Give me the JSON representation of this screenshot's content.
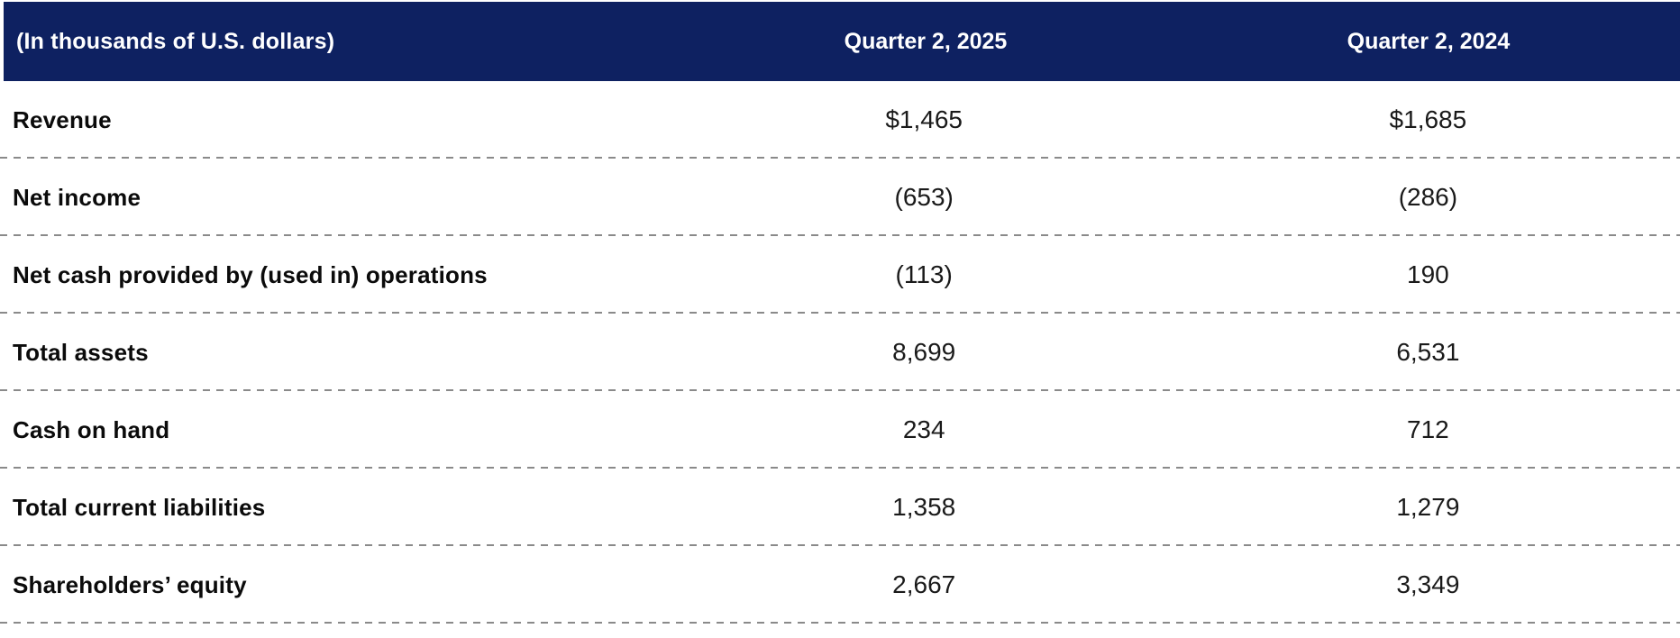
{
  "table": {
    "unit_label": "(In thousands of U.S. dollars)",
    "columns": [
      "Quarter 2, 2025",
      "Quarter 2, 2024"
    ],
    "rows": [
      {
        "label": "Revenue",
        "q2_2025": "$1,465",
        "q2_2024": "$1,685"
      },
      {
        "label": "Net income",
        "q2_2025": "(653)",
        "q2_2024": "(286)"
      },
      {
        "label": "Net cash provided by (used in) operations",
        "q2_2025": "(113)",
        "q2_2024": "190"
      },
      {
        "label": "Total assets",
        "q2_2025": "8,699",
        "q2_2024": "6,531"
      },
      {
        "label": "Cash on hand",
        "q2_2025": "234",
        "q2_2024": "712"
      },
      {
        "label": "Total current liabilities",
        "q2_2025": "1,358",
        "q2_2024": "1,279"
      },
      {
        "label": "Shareholders’ equity",
        "q2_2025": "2,667",
        "q2_2024": "3,349"
      }
    ]
  },
  "colors": {
    "header_bg": "#0E2161",
    "header_text": "#FFFFFF",
    "dash": "#8A8A8A",
    "body_text": "#0B0B0B"
  }
}
